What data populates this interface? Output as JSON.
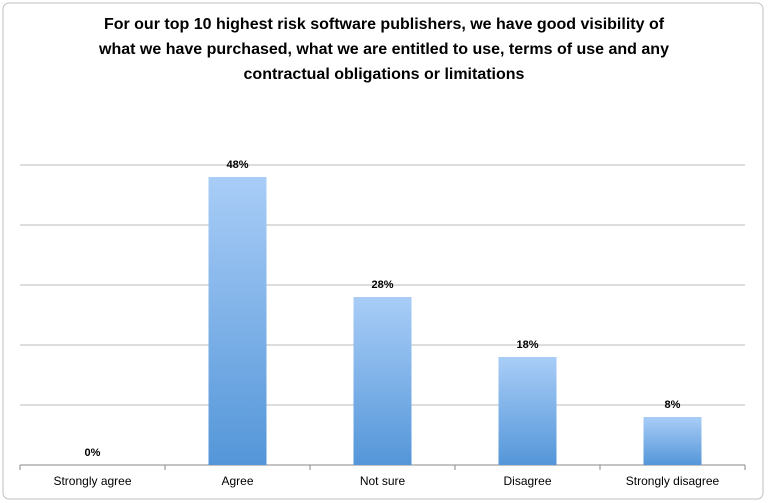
{
  "chart_data": {
    "type": "bar",
    "title": "For our top 10 highest risk software publishers, we have good visibility of what we have purchased, what we are entitled to use, terms of use and any contractual obligations or limitations",
    "categories": [
      "Strongly agree",
      "Agree",
      "Not sure",
      "Disagree",
      "Strongly disagree"
    ],
    "values": [
      0,
      48,
      28,
      18,
      8
    ],
    "value_labels": [
      "0%",
      "48%",
      "28%",
      "18%",
      "8%"
    ],
    "color": "#a9cdf7",
    "ylim": [
      0,
      50
    ],
    "yticks": [
      0,
      10,
      20,
      30,
      40,
      50
    ],
    "grid": true
  }
}
